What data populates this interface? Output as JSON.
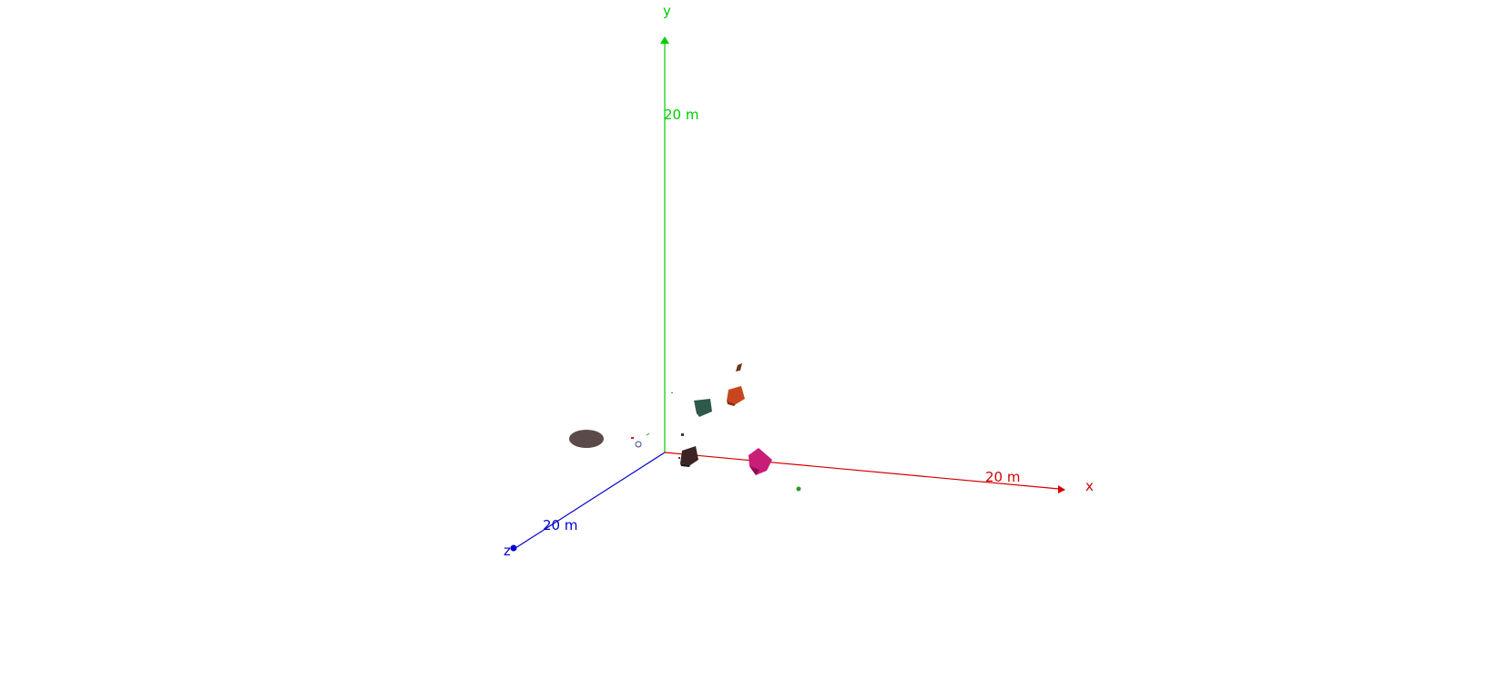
{
  "axes": {
    "x": {
      "label": "x",
      "scale_label": "20 m",
      "color": "#d40000"
    },
    "y": {
      "label": "y",
      "scale_label": "20 m",
      "color": "#00cc00"
    },
    "z": {
      "label": "z",
      "scale_label": "20 m",
      "color": "#0000cc"
    }
  },
  "objects": [
    {
      "name": "ellipse-object",
      "color": "#5b4a4a"
    },
    {
      "name": "dark-teal-block",
      "color": "#2e5a4a"
    },
    {
      "name": "orange-block",
      "color": "#c8461e"
    },
    {
      "name": "dark-brown-block",
      "color": "#3a2424"
    },
    {
      "name": "magenta-block",
      "color": "#c81e78"
    },
    {
      "name": "green-speck",
      "color": "#2a9a2a"
    },
    {
      "name": "small-brown-marker",
      "color": "#6a3a1a"
    }
  ]
}
